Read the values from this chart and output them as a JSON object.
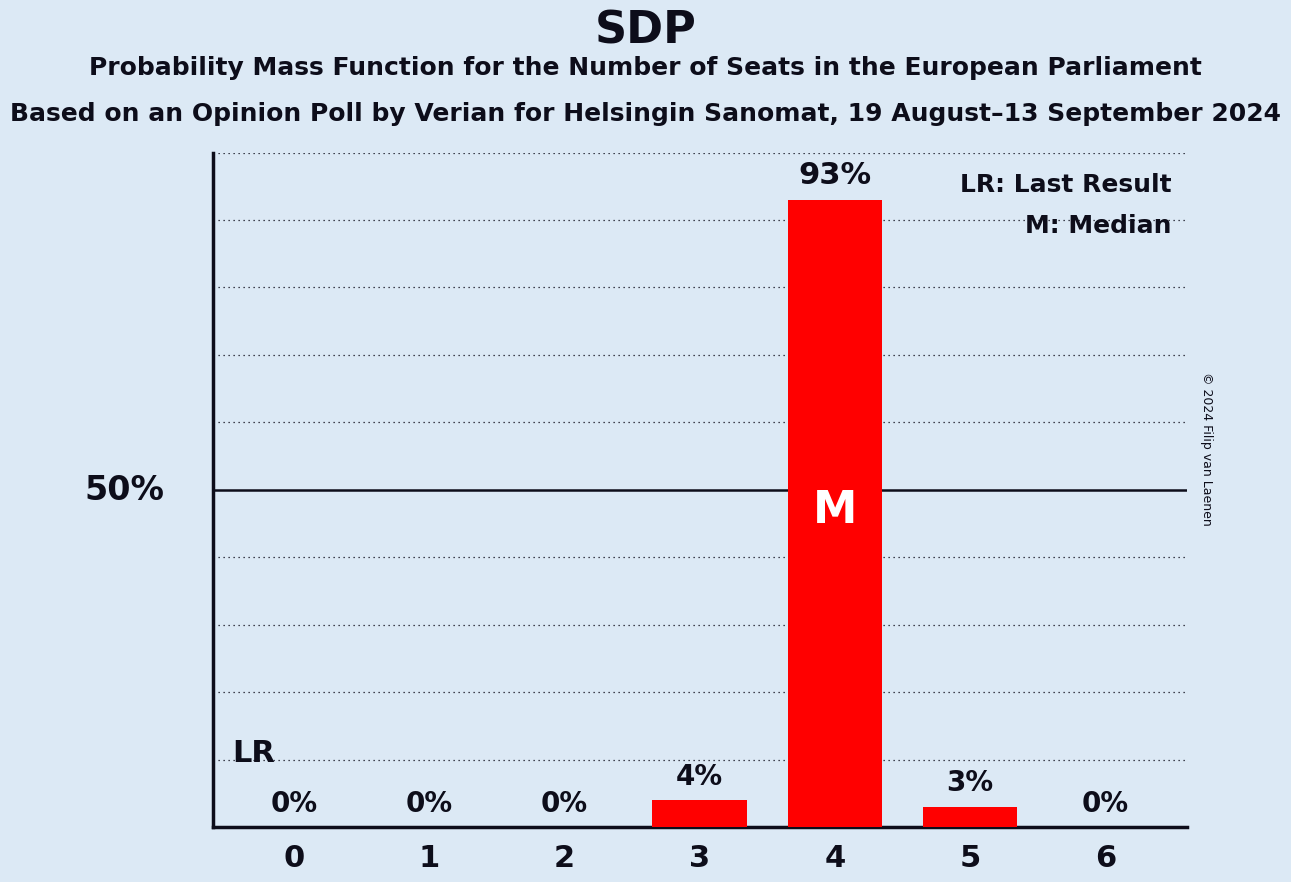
{
  "title": "SDP",
  "subtitle1": "Probability Mass Function for the Number of Seats in the European Parliament",
  "subtitle2": "Based on an Opinion Poll by Verian for Helsingin Sanomat, 19 August–13 September 2024",
  "copyright": "© 2024 Filip van Laenen",
  "seats": [
    0,
    1,
    2,
    3,
    4,
    5,
    6
  ],
  "probabilities": [
    0,
    0,
    0,
    4,
    93,
    3,
    0
  ],
  "bar_color": "#ff0000",
  "background_color": "#dce9f5",
  "last_result_seat": 3,
  "median_seat": 4,
  "ylim": [
    0,
    100
  ],
  "ylabel_50_label": "50%",
  "legend_lr": "LR: Last Result",
  "legend_m": "M: Median",
  "title_fontsize": 32,
  "subtitle_fontsize": 18,
  "axis_label_fontsize": 22,
  "bar_label_fontsize": 20,
  "legend_fontsize": 18,
  "ylabel_fontsize": 24,
  "lr_label_fontsize": 22
}
